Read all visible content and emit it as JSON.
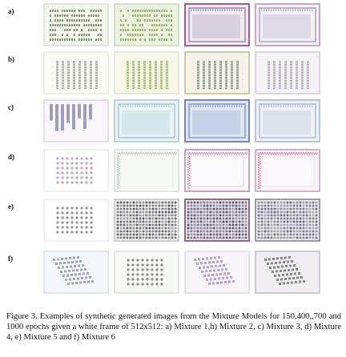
{
  "figure": {
    "rows": [
      {
        "label": "a)",
        "tiles": [
          {
            "bg": "#f4f7ec",
            "frame": "#dfe6d8",
            "accent": "#5f6e52",
            "motif": "rows"
          },
          {
            "bg": "#edf2e0",
            "frame": "#d6dfc6",
            "accent": "#7d9a55",
            "motif": "rows"
          },
          {
            "bg": "#f2eaf0",
            "frame": "#9b5f86",
            "accent": "#6a5f8f",
            "motif": "panel"
          },
          {
            "bg": "#f3f0f6",
            "frame": "#c8a6c6",
            "accent": "#8b7aa0",
            "motif": "panel"
          }
        ]
      },
      {
        "label": "b)",
        "tiles": [
          {
            "bg": "#fbfbf6",
            "frame": "#eceee2",
            "accent": "#6d6f66",
            "motif": "cols"
          },
          {
            "bg": "#f6f7e8",
            "frame": "#e7e9d4",
            "accent": "#6f8a3e",
            "motif": "cols"
          },
          {
            "bg": "#f5f2e7",
            "frame": "#cfc7a8",
            "accent": "#4f5a4c",
            "motif": "cols"
          },
          {
            "bg": "#f6f2f6",
            "frame": "#ddd2dd",
            "accent": "#8c7f95",
            "motif": "cols"
          }
        ]
      },
      {
        "label": "c)",
        "tiles": [
          {
            "bg": "#faf6fa",
            "frame": "#e8dce8",
            "accent": "#6b6fa2",
            "motif": "drips"
          },
          {
            "bg": "#eaf3f5",
            "frame": "#b9d3d8",
            "accent": "#7fb0bd",
            "motif": "panel"
          },
          {
            "bg": "#dfe6f3",
            "frame": "#7a86b0",
            "accent": "#5b73b8",
            "motif": "panel"
          },
          {
            "bg": "#edf1f6",
            "frame": "#b9c4d6",
            "accent": "#8aa0bf",
            "motif": "panel"
          }
        ]
      },
      {
        "label": "d)",
        "tiles": [
          {
            "bg": "#ffffff",
            "frame": "#f3eef4",
            "accent": "#b27fb3",
            "motif": "dots"
          },
          {
            "bg": "#f7f9f7",
            "frame": "#e0e6e2",
            "accent": "#9fb3a8",
            "motif": "frame"
          },
          {
            "bg": "#fbfafc",
            "frame": "#c9a0be",
            "accent": "#a06c9a",
            "motif": "frame"
          },
          {
            "bg": "#fbf8fb",
            "frame": "#d6b0c8",
            "accent": "#c9507a",
            "motif": "frame"
          }
        ]
      },
      {
        "label": "e)",
        "tiles": [
          {
            "bg": "#ffffff",
            "frame": "#f0f0f0",
            "accent": "#6c6f76",
            "motif": "dots"
          },
          {
            "bg": "#f1f0f1",
            "frame": "#cfcfd2",
            "accent": "#46464c",
            "motif": "dense"
          },
          {
            "bg": "#e9e4ea",
            "frame": "#8b6a86",
            "accent": "#4b3f56",
            "motif": "dense"
          },
          {
            "bg": "#ecebef",
            "frame": "#9d98a8",
            "accent": "#5d5c6e",
            "motif": "dense"
          }
        ]
      },
      {
        "label": "f)",
        "tiles": [
          {
            "bg": "#f3f6fb",
            "frame": "#dfe6ef",
            "accent": "#6d7b8f",
            "motif": "diag"
          },
          {
            "bg": "#f6f8f6",
            "frame": "#e3e7e3",
            "accent": "#5c6a60",
            "motif": "dots"
          },
          {
            "bg": "#f7f4f8",
            "frame": "#e6dee8",
            "accent": "#9a6fb8",
            "motif": "diag"
          },
          {
            "bg": "#f0eef2",
            "frame": "#cfc8d6",
            "accent": "#4f4a58",
            "motif": "diag"
          }
        ]
      }
    ]
  },
  "caption": {
    "text": "Figure 3.  Examples of synthetic generated images from the Mixture Models for 150,400,,700 and 1000 epochs given a white frame of 512x512: a) Mixture 1,b) Mixture 2, c) Mixture 3, d) Mixture 4, e) Mixture 5 and f) Mixture 6"
  }
}
